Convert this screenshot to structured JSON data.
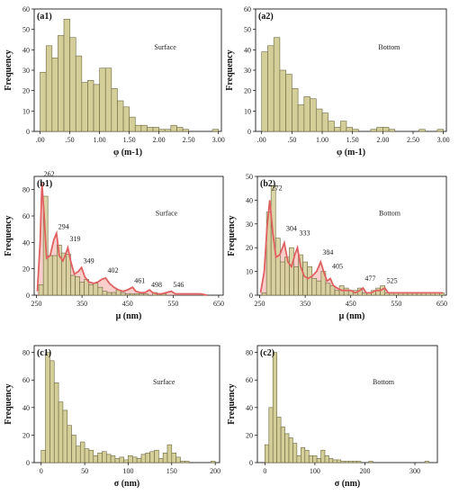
{
  "colors": {
    "bar_fill": "#d4cf99",
    "bar_stroke": "#6b6640",
    "fit_line": "#e06060",
    "fit_fill": "#f2a7a0"
  },
  "chart_data": [
    {
      "id": "a1",
      "type": "bar",
      "panel_label": "(a1)",
      "annotation": "Surface",
      "xlabel": "φ (m-1)",
      "ylabel": "Frequency",
      "xlim": [
        -0.1,
        3.05
      ],
      "ylim": [
        0,
        60
      ],
      "xticks": [
        0.0,
        0.5,
        1.0,
        1.5,
        2.0,
        2.5,
        3.0
      ],
      "xtick_labels": [
        ".00",
        ".50",
        "1.00",
        "1.50",
        "2.00",
        "2.50",
        "3.00"
      ],
      "yticks": [
        0,
        10,
        20,
        30,
        40,
        50,
        60
      ],
      "bin_start": 0.0,
      "bin_width": 0.1,
      "values": [
        29,
        42,
        36,
        47,
        55,
        46,
        37,
        24,
        25,
        23,
        31,
        31,
        21,
        15,
        12,
        7,
        3,
        3,
        2,
        2,
        1,
        1,
        3,
        2,
        1,
        0,
        0,
        0,
        0,
        1
      ]
    },
    {
      "id": "a2",
      "type": "bar",
      "panel_label": "(a2)",
      "annotation": "Bottom",
      "xlabel": "φ (m-1)",
      "ylabel": "Frequency",
      "xlim": [
        -0.1,
        3.05
      ],
      "ylim": [
        0,
        60
      ],
      "xticks": [
        0.0,
        0.5,
        1.0,
        1.5,
        2.0,
        2.5,
        3.0
      ],
      "xtick_labels": [
        ".00",
        ".50",
        "1.00",
        "1.50",
        "2.00",
        "2.50",
        "3.00"
      ],
      "yticks": [
        0,
        10,
        20,
        30,
        40,
        50,
        60
      ],
      "bin_start": 0.0,
      "bin_width": 0.1,
      "values": [
        39,
        42,
        46,
        30,
        28,
        21,
        13,
        17,
        16,
        11,
        9,
        5,
        2,
        5,
        2,
        1,
        0,
        0,
        1,
        2,
        2,
        1,
        0,
        0,
        0,
        0,
        1,
        0,
        0,
        1
      ]
    },
    {
      "id": "b1",
      "type": "bar",
      "panel_label": "(b1)",
      "annotation": "Surface",
      "xlabel": "μ (nm)",
      "ylabel": "Frequency",
      "xlim": [
        245,
        660
      ],
      "ylim": [
        0,
        90
      ],
      "xticks": [
        250,
        350,
        450,
        550,
        650
      ],
      "xtick_labels": [
        "250",
        "350",
        "450",
        "550",
        "650"
      ],
      "yticks": [
        0,
        20,
        40,
        60,
        80
      ],
      "bin_start": 255,
      "bin_width": 10,
      "values": [
        8,
        75,
        30,
        30,
        38,
        32,
        31,
        15,
        14,
        10,
        12,
        8,
        9,
        6,
        3,
        2,
        2,
        4,
        2,
        1,
        1,
        1,
        1,
        1,
        0,
        2,
        1,
        1,
        0,
        0,
        0,
        0,
        0,
        0,
        0,
        0,
        0
      ],
      "peaks": [
        {
          "x": 262,
          "y": 88,
          "label": "262"
        },
        {
          "x": 294,
          "y": 48,
          "label": "294"
        },
        {
          "x": 319,
          "y": 39,
          "label": "319"
        },
        {
          "x": 349,
          "y": 22,
          "label": "349"
        },
        {
          "x": 402,
          "y": 15,
          "label": "402"
        },
        {
          "x": 461,
          "y": 7,
          "label": "461"
        },
        {
          "x": 498,
          "y": 4,
          "label": "498"
        },
        {
          "x": 546,
          "y": 4,
          "label": "546"
        }
      ],
      "fit_points": [
        [
          252,
          3
        ],
        [
          258,
          40
        ],
        [
          262,
          85
        ],
        [
          267,
          60
        ],
        [
          272,
          28
        ],
        [
          280,
          30
        ],
        [
          288,
          42
        ],
        [
          294,
          47
        ],
        [
          300,
          30
        ],
        [
          308,
          26
        ],
        [
          315,
          32
        ],
        [
          319,
          36
        ],
        [
          325,
          26
        ],
        [
          333,
          16
        ],
        [
          342,
          18
        ],
        [
          349,
          21
        ],
        [
          356,
          14
        ],
        [
          365,
          10
        ],
        [
          375,
          9
        ],
        [
          385,
          10
        ],
        [
          393,
          12
        ],
        [
          402,
          13
        ],
        [
          410,
          9
        ],
        [
          420,
          6
        ],
        [
          430,
          4
        ],
        [
          440,
          3
        ],
        [
          450,
          4
        ],
        [
          461,
          6
        ],
        [
          468,
          3
        ],
        [
          478,
          2
        ],
        [
          488,
          2
        ],
        [
          498,
          4
        ],
        [
          505,
          2
        ],
        [
          515,
          1
        ],
        [
          525,
          1
        ],
        [
          535,
          2
        ],
        [
          546,
          3
        ],
        [
          555,
          1
        ],
        [
          570,
          1
        ],
        [
          590,
          1
        ],
        [
          610,
          1
        ],
        [
          625,
          0
        ]
      ]
    },
    {
      "id": "b2",
      "type": "bar",
      "panel_label": "(b2)",
      "annotation": "Bottom",
      "xlabel": "μ (nm)",
      "ylabel": "Frequency",
      "xlim": [
        245,
        660
      ],
      "ylim": [
        0,
        50
      ],
      "xticks": [
        250,
        350,
        450,
        550,
        650
      ],
      "xtick_labels": [
        "250",
        "350",
        "450",
        "550",
        "650"
      ],
      "yticks": [
        0,
        10,
        20,
        30,
        40,
        50
      ],
      "bin_start": 255,
      "bin_width": 10,
      "values": [
        1,
        35,
        46,
        24,
        14,
        16,
        20,
        12,
        17,
        14,
        12,
        7,
        6,
        10,
        5,
        4,
        2,
        4,
        3,
        2,
        2,
        3,
        1,
        1,
        2,
        3,
        4,
        1,
        1,
        1,
        1,
        1,
        1,
        1,
        1,
        1,
        1,
        1,
        1,
        1
      ],
      "peaks": [
        {
          "x": 272,
          "y": 43,
          "label": "272"
        },
        {
          "x": 304,
          "y": 26,
          "label": "304"
        },
        {
          "x": 333,
          "y": 24,
          "label": "333"
        },
        {
          "x": 384,
          "y": 16,
          "label": "384"
        },
        {
          "x": 405,
          "y": 10,
          "label": "405"
        },
        {
          "x": 477,
          "y": 5,
          "label": "477"
        },
        {
          "x": 525,
          "y": 4,
          "label": "525"
        }
      ],
      "fit_points": [
        [
          252,
          1
        ],
        [
          260,
          10
        ],
        [
          266,
          28
        ],
        [
          272,
          40
        ],
        [
          279,
          26
        ],
        [
          286,
          16
        ],
        [
          294,
          17
        ],
        [
          304,
          22
        ],
        [
          312,
          14
        ],
        [
          320,
          12
        ],
        [
          327,
          17
        ],
        [
          333,
          20
        ],
        [
          340,
          12
        ],
        [
          348,
          8
        ],
        [
          356,
          7
        ],
        [
          365,
          8
        ],
        [
          375,
          10
        ],
        [
          384,
          14
        ],
        [
          392,
          9
        ],
        [
          398,
          6
        ],
        [
          405,
          7
        ],
        [
          412,
          4
        ],
        [
          420,
          3
        ],
        [
          430,
          2
        ],
        [
          440,
          2
        ],
        [
          450,
          2
        ],
        [
          460,
          1
        ],
        [
          470,
          2
        ],
        [
          477,
          3
        ],
        [
          484,
          1
        ],
        [
          495,
          1
        ],
        [
          505,
          2
        ],
        [
          515,
          2
        ],
        [
          525,
          3
        ],
        [
          532,
          1
        ],
        [
          545,
          1
        ],
        [
          560,
          1
        ],
        [
          580,
          1
        ],
        [
          600,
          1
        ],
        [
          620,
          1
        ],
        [
          640,
          1
        ],
        [
          652,
          1
        ]
      ]
    },
    {
      "id": "c1",
      "type": "bar",
      "panel_label": "(c1)",
      "annotation": "Surface",
      "xlabel": "σ (nm)",
      "ylabel": "Frequency",
      "xlim": [
        -8,
        205
      ],
      "ylim": [
        0,
        85
      ],
      "xticks": [
        0,
        50,
        100,
        150,
        200
      ],
      "xtick_labels": [
        "0",
        "50",
        "100",
        "150",
        "200"
      ],
      "yticks": [
        0,
        20,
        40,
        60,
        80
      ],
      "bin_start": 0,
      "bin_width": 5,
      "values": [
        9,
        80,
        74,
        58,
        44,
        38,
        27,
        20,
        12,
        15,
        10,
        9,
        5,
        7,
        8,
        6,
        5,
        3,
        4,
        2,
        5,
        4,
        3,
        6,
        7,
        8,
        9,
        3,
        7,
        13,
        7,
        4,
        1,
        1,
        0,
        0,
        0,
        0,
        0,
        1
      ],
      "extra_values": [
        [
          160,
          1
        ],
        [
          165,
          1
        ],
        [
          170,
          1
        ],
        [
          175,
          1
        ],
        [
          180,
          1
        ],
        [
          185,
          1
        ],
        [
          190,
          1
        ],
        [
          195,
          1
        ]
      ]
    },
    {
      "id": "c2",
      "type": "bar",
      "panel_label": "(c2)",
      "annotation": "Bottom",
      "xlabel": "σ (nm)",
      "ylabel": "Frequency",
      "xlim": [
        -15,
        345
      ],
      "ylim": [
        0,
        85
      ],
      "xticks": [
        0,
        100,
        200,
        300
      ],
      "xtick_labels": [
        "0",
        "100",
        "200",
        "300"
      ],
      "yticks": [
        0,
        20,
        40,
        60,
        80
      ],
      "bin_start": 0,
      "bin_width": 8,
      "values": [
        13,
        40,
        80,
        33,
        26,
        21,
        18,
        14,
        5,
        11,
        9,
        5,
        5,
        3,
        9,
        5,
        3,
        2,
        2,
        1,
        1,
        1,
        1,
        1,
        0,
        0,
        1,
        0,
        0,
        0,
        0,
        0,
        0,
        0,
        0,
        0,
        0,
        0,
        0,
        0,
        1
      ],
      "extra_values": []
    }
  ]
}
